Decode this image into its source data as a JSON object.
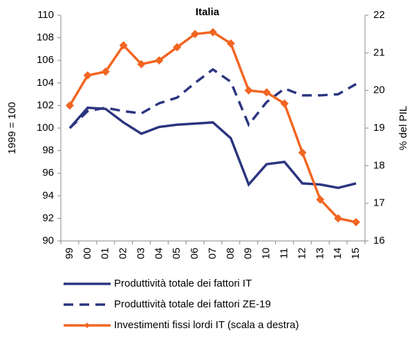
{
  "chart_data": {
    "type": "line",
    "title": "Italia",
    "y_label": "1999 = 100",
    "y2_label": "% del PIL",
    "categories": [
      "99",
      "00",
      "01",
      "02",
      "03",
      "04",
      "05",
      "06",
      "07",
      "08",
      "09",
      "10",
      "11",
      "12",
      "13",
      "14",
      "15"
    ],
    "series": [
      {
        "name": "Produttività totale dei fattori IT",
        "color": "#2b3580",
        "line_style": "solid",
        "values": [
          100,
          101.8,
          101.7,
          100.5,
          99.5,
          100.1,
          100.3,
          100.4,
          100.5,
          99.1,
          95.0,
          96.8,
          97.0,
          95.1,
          95.0,
          94.7,
          95.1
        ]
      },
      {
        "name": "Produttività totale dei fattori ZE-19",
        "color": "#2b3580",
        "line_style": "dashed",
        "values": [
          100,
          101.5,
          101.8,
          101.5,
          101.3,
          102.2,
          102.7,
          104.0,
          105.2,
          104.1,
          100.3,
          102.3,
          103.5,
          102.9,
          102.9,
          103.0,
          103.9
        ]
      },
      {
        "name": "Investimenti fissi lordi IT (scala a destra)",
        "color": "#f26522",
        "line_style": "solid",
        "marker": "diamond",
        "axis": "y2",
        "values": [
          19.6,
          20.4,
          20.5,
          21.2,
          20.7,
          20.8,
          21.15,
          21.5,
          21.55,
          21.25,
          20.0,
          19.95,
          19.65,
          18.35,
          17.1,
          16.6,
          16.5
        ]
      }
    ],
    "ylim": [
      90,
      110
    ],
    "yticks": [
      90,
      92,
      94,
      96,
      98,
      100,
      102,
      104,
      106,
      108,
      110
    ],
    "y2lim": [
      16,
      22
    ],
    "y2ticks": [
      16,
      17,
      18,
      19,
      20,
      21,
      22
    ],
    "grid": false,
    "legend": "bottom"
  }
}
